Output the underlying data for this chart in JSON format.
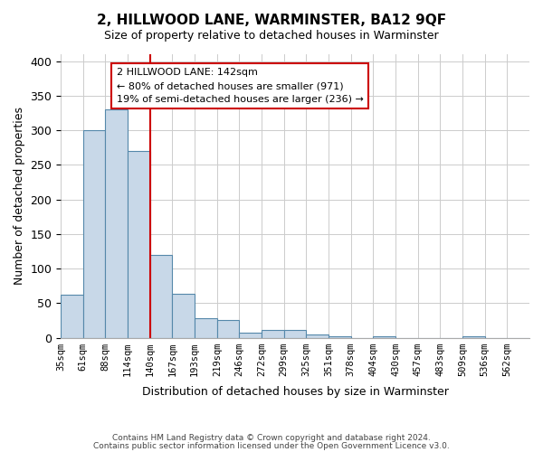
{
  "title": "2, HILLWOOD LANE, WARMINSTER, BA12 9QF",
  "subtitle": "Size of property relative to detached houses in Warminster",
  "xlabel": "Distribution of detached houses by size in Warminster",
  "ylabel": "Number of detached properties",
  "footer_line1": "Contains HM Land Registry data © Crown copyright and database right 2024.",
  "footer_line2": "Contains public sector information licensed under the Open Government Licence v3.0.",
  "bin_labels": [
    "35sqm",
    "61sqm",
    "88sqm",
    "114sqm",
    "140sqm",
    "167sqm",
    "193sqm",
    "219sqm",
    "246sqm",
    "272sqm",
    "299sqm",
    "325sqm",
    "351sqm",
    "378sqm",
    "404sqm",
    "430sqm",
    "457sqm",
    "483sqm",
    "509sqm",
    "536sqm",
    "562sqm"
  ],
  "bar_heights": [
    62,
    300,
    330,
    270,
    120,
    63,
    28,
    25,
    7,
    11,
    11,
    5,
    2,
    0,
    2,
    0,
    0,
    0,
    2,
    0,
    0
  ],
  "bar_color": "#c8d8e8",
  "bar_edge_color": "#5588aa",
  "vline_x": 4.0,
  "vline_color": "#cc0000",
  "annotation_text": "2 HILLWOOD LANE: 142sqm\n← 80% of detached houses are smaller (971)\n19% of semi-detached houses are larger (236) →",
  "annotation_box_color": "#ffffff",
  "annotation_box_edge_color": "#cc0000",
  "ylim": [
    0,
    410
  ],
  "yticks": [
    0,
    50,
    100,
    150,
    200,
    250,
    300,
    350,
    400
  ],
  "background_color": "#ffffff",
  "grid_color": "#cccccc"
}
